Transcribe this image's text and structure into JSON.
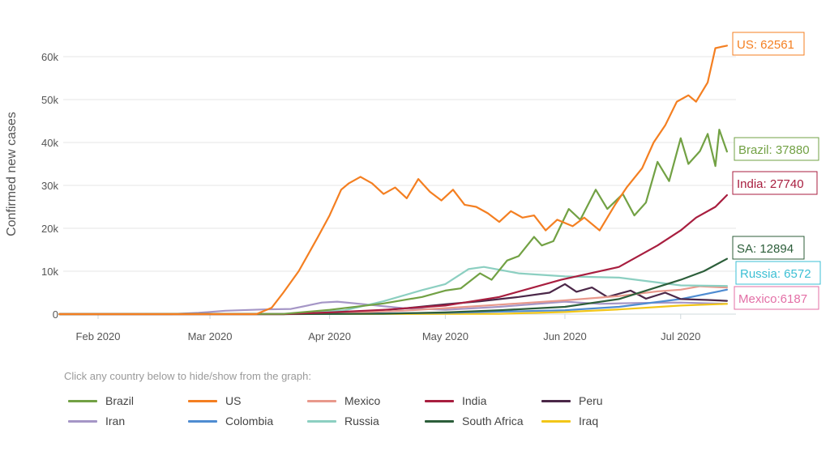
{
  "chart_data": {
    "type": "line",
    "ylabel": "Confirmed new cases",
    "xlabel": "",
    "x_range": [
      "2020-01-22",
      "2020-07-13"
    ],
    "ylim": [
      0,
      65000
    ],
    "y_ticks": [
      {
        "value": 0,
        "label": "0"
      },
      {
        "value": 10000,
        "label": "10k"
      },
      {
        "value": 20000,
        "label": "20k"
      },
      {
        "value": 30000,
        "label": "30k"
      },
      {
        "value": 40000,
        "label": "40k"
      },
      {
        "value": 50000,
        "label": "50k"
      },
      {
        "value": 60000,
        "label": "60k"
      }
    ],
    "x_ticks": [
      {
        "date": "2020-02-01",
        "label": "Feb 2020"
      },
      {
        "date": "2020-03-01",
        "label": "Mar 2020"
      },
      {
        "date": "2020-04-01",
        "label": "Apr 2020"
      },
      {
        "date": "2020-05-01",
        "label": "May 2020"
      },
      {
        "date": "2020-06-01",
        "label": "Jun 2020"
      },
      {
        "date": "2020-07-01",
        "label": "Jul 2020"
      }
    ],
    "grid": "horizontal",
    "series": [
      {
        "name": "Iran",
        "color": "#a596c6",
        "points": [
          [
            "2020-01-22",
            0
          ],
          [
            "2020-02-20",
            0
          ],
          [
            "2020-02-27",
            300
          ],
          [
            "2020-03-05",
            800
          ],
          [
            "2020-03-15",
            1100
          ],
          [
            "2020-03-22",
            1200
          ],
          [
            "2020-03-30",
            2700
          ],
          [
            "2020-04-03",
            2900
          ],
          [
            "2020-04-10",
            2300
          ],
          [
            "2020-04-20",
            1400
          ],
          [
            "2020-05-01",
            1000
          ],
          [
            "2020-05-15",
            1700
          ],
          [
            "2020-06-01",
            2900
          ],
          [
            "2020-06-10",
            2400
          ],
          [
            "2020-06-20",
            2600
          ],
          [
            "2020-07-01",
            2700
          ],
          [
            "2020-07-13",
            2400
          ]
        ]
      },
      {
        "name": "Iraq",
        "color": "#f2c618",
        "points": [
          [
            "2020-01-22",
            0
          ],
          [
            "2020-05-15",
            50
          ],
          [
            "2020-06-01",
            500
          ],
          [
            "2020-06-15",
            1100
          ],
          [
            "2020-07-01",
            2000
          ],
          [
            "2020-07-13",
            2400
          ]
        ]
      },
      {
        "name": "Colombia",
        "color": "#4f8cd1",
        "points": [
          [
            "2020-01-22",
            0
          ],
          [
            "2020-04-01",
            50
          ],
          [
            "2020-05-01",
            300
          ],
          [
            "2020-06-01",
            900
          ],
          [
            "2020-06-15",
            1700
          ],
          [
            "2020-07-01",
            3500
          ],
          [
            "2020-07-13",
            5700
          ]
        ]
      },
      {
        "name": "Peru",
        "color": "#4b2748",
        "points": [
          [
            "2020-01-22",
            0
          ],
          [
            "2020-03-20",
            0
          ],
          [
            "2020-04-05",
            200
          ],
          [
            "2020-04-20",
            1300
          ],
          [
            "2020-05-01",
            2300
          ],
          [
            "2020-05-10",
            3000
          ],
          [
            "2020-05-20",
            4000
          ],
          [
            "2020-05-28",
            5000
          ],
          [
            "2020-06-01",
            7000
          ],
          [
            "2020-06-04",
            5200
          ],
          [
            "2020-06-08",
            6200
          ],
          [
            "2020-06-12",
            4000
          ],
          [
            "2020-06-18",
            5500
          ],
          [
            "2020-06-22",
            3600
          ],
          [
            "2020-06-27",
            5000
          ],
          [
            "2020-07-01",
            3500
          ],
          [
            "2020-07-08",
            3300
          ],
          [
            "2020-07-13",
            3100
          ]
        ]
      },
      {
        "name": "Mexico",
        "color": "#e8998c",
        "points": [
          [
            "2020-01-22",
            0
          ],
          [
            "2020-03-20",
            0
          ],
          [
            "2020-04-05",
            300
          ],
          [
            "2020-04-20",
            800
          ],
          [
            "2020-05-01",
            1400
          ],
          [
            "2020-05-15",
            2200
          ],
          [
            "2020-06-01",
            3200
          ],
          [
            "2020-06-15",
            4200
          ],
          [
            "2020-06-25",
            5300
          ],
          [
            "2020-07-01",
            5700
          ],
          [
            "2020-07-06",
            6500
          ],
          [
            "2020-07-13",
            6187
          ]
        ]
      },
      {
        "name": "Russia",
        "color": "#8ccfc1",
        "points": [
          [
            "2020-01-22",
            0
          ],
          [
            "2020-03-20",
            0
          ],
          [
            "2020-04-05",
            900
          ],
          [
            "2020-04-15",
            3000
          ],
          [
            "2020-04-25",
            5600
          ],
          [
            "2020-05-01",
            7000
          ],
          [
            "2020-05-07",
            10500
          ],
          [
            "2020-05-11",
            11000
          ],
          [
            "2020-05-20",
            9500
          ],
          [
            "2020-06-01",
            8800
          ],
          [
            "2020-06-15",
            8500
          ],
          [
            "2020-07-01",
            6700
          ],
          [
            "2020-07-13",
            6572
          ]
        ]
      },
      {
        "name": "South Africa",
        "color": "#2c5e3a",
        "points": [
          [
            "2020-01-22",
            0
          ],
          [
            "2020-03-20",
            0
          ],
          [
            "2020-04-15",
            100
          ],
          [
            "2020-05-01",
            400
          ],
          [
            "2020-05-15",
            900
          ],
          [
            "2020-06-01",
            1700
          ],
          [
            "2020-06-15",
            3500
          ],
          [
            "2020-07-01",
            8000
          ],
          [
            "2020-07-07",
            10000
          ],
          [
            "2020-07-13",
            12894
          ]
        ]
      },
      {
        "name": "India",
        "color": "#a81e3f",
        "points": [
          [
            "2020-01-22",
            0
          ],
          [
            "2020-03-20",
            0
          ],
          [
            "2020-04-01",
            400
          ],
          [
            "2020-04-15",
            1000
          ],
          [
            "2020-05-01",
            2000
          ],
          [
            "2020-05-15",
            4000
          ],
          [
            "2020-05-31",
            8000
          ],
          [
            "2020-06-15",
            11000
          ],
          [
            "2020-06-25",
            16000
          ],
          [
            "2020-07-01",
            19500
          ],
          [
            "2020-07-05",
            22500
          ],
          [
            "2020-07-10",
            25000
          ],
          [
            "2020-07-13",
            27740
          ]
        ]
      },
      {
        "name": "Brazil",
        "color": "#72a144",
        "points": [
          [
            "2020-01-22",
            0
          ],
          [
            "2020-03-20",
            50
          ],
          [
            "2020-04-01",
            1000
          ],
          [
            "2020-04-15",
            2500
          ],
          [
            "2020-04-25",
            4000
          ],
          [
            "2020-05-01",
            5500
          ],
          [
            "2020-05-05",
            6000
          ],
          [
            "2020-05-10",
            9500
          ],
          [
            "2020-05-13",
            8000
          ],
          [
            "2020-05-17",
            12500
          ],
          [
            "2020-05-20",
            13500
          ],
          [
            "2020-05-24",
            18000
          ],
          [
            "2020-05-26",
            16000
          ],
          [
            "2020-05-29",
            17000
          ],
          [
            "2020-06-02",
            24500
          ],
          [
            "2020-06-05",
            22000
          ],
          [
            "2020-06-09",
            29000
          ],
          [
            "2020-06-12",
            24500
          ],
          [
            "2020-06-16",
            28000
          ],
          [
            "2020-06-19",
            23000
          ],
          [
            "2020-06-22",
            26000
          ],
          [
            "2020-06-25",
            35500
          ],
          [
            "2020-06-28",
            31000
          ],
          [
            "2020-07-01",
            41000
          ],
          [
            "2020-07-03",
            35000
          ],
          [
            "2020-07-06",
            38000
          ],
          [
            "2020-07-08",
            42000
          ],
          [
            "2020-07-10",
            34500
          ],
          [
            "2020-07-11",
            43000
          ],
          [
            "2020-07-13",
            37880
          ]
        ]
      },
      {
        "name": "US",
        "color": "#f47f21",
        "points": [
          [
            "2020-01-22",
            0
          ],
          [
            "2020-03-13",
            0
          ],
          [
            "2020-03-17",
            1500
          ],
          [
            "2020-03-20",
            5000
          ],
          [
            "2020-03-24",
            10000
          ],
          [
            "2020-03-29",
            18000
          ],
          [
            "2020-04-01",
            23000
          ],
          [
            "2020-04-04",
            29000
          ],
          [
            "2020-04-06",
            30500
          ],
          [
            "2020-04-09",
            32000
          ],
          [
            "2020-04-12",
            30500
          ],
          [
            "2020-04-15",
            28000
          ],
          [
            "2020-04-18",
            29500
          ],
          [
            "2020-04-21",
            27000
          ],
          [
            "2020-04-24",
            31500
          ],
          [
            "2020-04-27",
            28500
          ],
          [
            "2020-04-30",
            26500
          ],
          [
            "2020-05-03",
            29000
          ],
          [
            "2020-05-06",
            25500
          ],
          [
            "2020-05-09",
            25000
          ],
          [
            "2020-05-12",
            23500
          ],
          [
            "2020-05-15",
            21500
          ],
          [
            "2020-05-18",
            24000
          ],
          [
            "2020-05-21",
            22500
          ],
          [
            "2020-05-24",
            23000
          ],
          [
            "2020-05-27",
            19500
          ],
          [
            "2020-05-30",
            22000
          ],
          [
            "2020-06-03",
            20500
          ],
          [
            "2020-06-06",
            22500
          ],
          [
            "2020-06-10",
            19500
          ],
          [
            "2020-06-14",
            25500
          ],
          [
            "2020-06-17",
            29500
          ],
          [
            "2020-06-21",
            34000
          ],
          [
            "2020-06-24",
            40000
          ],
          [
            "2020-06-27",
            44000
          ],
          [
            "2020-06-30",
            49500
          ],
          [
            "2020-07-03",
            51000
          ],
          [
            "2020-07-05",
            49500
          ],
          [
            "2020-07-08",
            54000
          ],
          [
            "2020-07-10",
            62000
          ],
          [
            "2020-07-13",
            62561
          ]
        ]
      }
    ],
    "callouts": [
      {
        "series": "US",
        "text": "US: 62561",
        "color": "#f47f21"
      },
      {
        "series": "Brazil",
        "text": "Brazil: 37880",
        "color": "#72a144"
      },
      {
        "series": "India",
        "text": "India: 27740",
        "color": "#a81e3f"
      },
      {
        "series": "South Africa",
        "text": "SA: 12894",
        "color": "#2c5e3a"
      },
      {
        "series": "Russia",
        "text": "Russia: 6572",
        "color": "#3bbfd4"
      },
      {
        "series": "Mexico",
        "text": "Mexico:6187",
        "color": "#e36fa6"
      }
    ]
  },
  "hint_text": "Click any country below to hide/show from the graph:",
  "legend": [
    {
      "name": "Brazil",
      "color": "#72a144"
    },
    {
      "name": "US",
      "color": "#f47f21"
    },
    {
      "name": "Mexico",
      "color": "#e8998c"
    },
    {
      "name": "India",
      "color": "#a81e3f"
    },
    {
      "name": "Peru",
      "color": "#4b2748"
    },
    {
      "name": "Iran",
      "color": "#a596c6"
    },
    {
      "name": "Colombia",
      "color": "#4f8cd1"
    },
    {
      "name": "Russia",
      "color": "#8ccfc1"
    },
    {
      "name": "South Africa",
      "color": "#2c5e3a"
    },
    {
      "name": "Iraq",
      "color": "#f2c618"
    }
  ]
}
